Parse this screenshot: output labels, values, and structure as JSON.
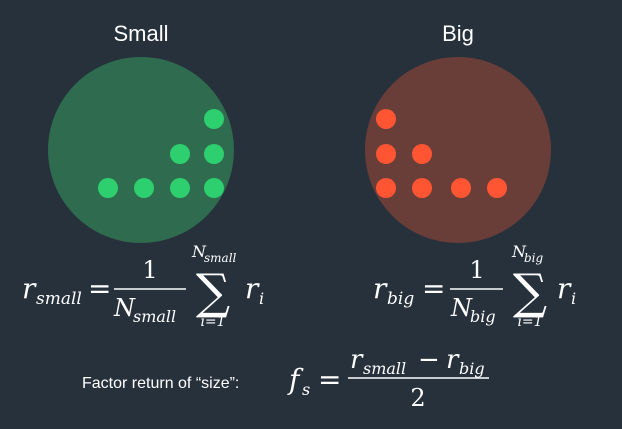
{
  "left_panel": {
    "title": "Small",
    "circle_color": "#2e6b4f",
    "dot_color": "#2ecf6f",
    "dot_count": 8
  },
  "right_panel": {
    "title": "Big",
    "circle_color": "#6a3e38",
    "dot_color": "#ff5533",
    "dot_count": 7
  },
  "formula_small": {
    "lhs_var": "r",
    "lhs_sub": "small",
    "equals": "=",
    "numerator": "1",
    "denom_var": "N",
    "denom_sub": "small",
    "sum_symbol": "∑",
    "upper_var": "N",
    "upper_sub": "small",
    "lower": "i=1",
    "term_var": "r",
    "term_sub": "i"
  },
  "formula_big": {
    "lhs_var": "r",
    "lhs_sub": "big",
    "equals": "=",
    "numerator": "1",
    "denom_var": "N",
    "denom_sub": "big",
    "sum_symbol": "∑",
    "upper_var": "N",
    "upper_sub": "big",
    "lower": "i=1",
    "term_var": "r",
    "term_sub": "i"
  },
  "factor": {
    "label": "Factor return of “size”:",
    "lhs_var": "f",
    "lhs_sub": "s",
    "equals": "=",
    "num_var1": "r",
    "num_sub1": "small",
    "minus": "−",
    "num_var2": "r",
    "num_sub2": "big",
    "denominator": "2"
  }
}
